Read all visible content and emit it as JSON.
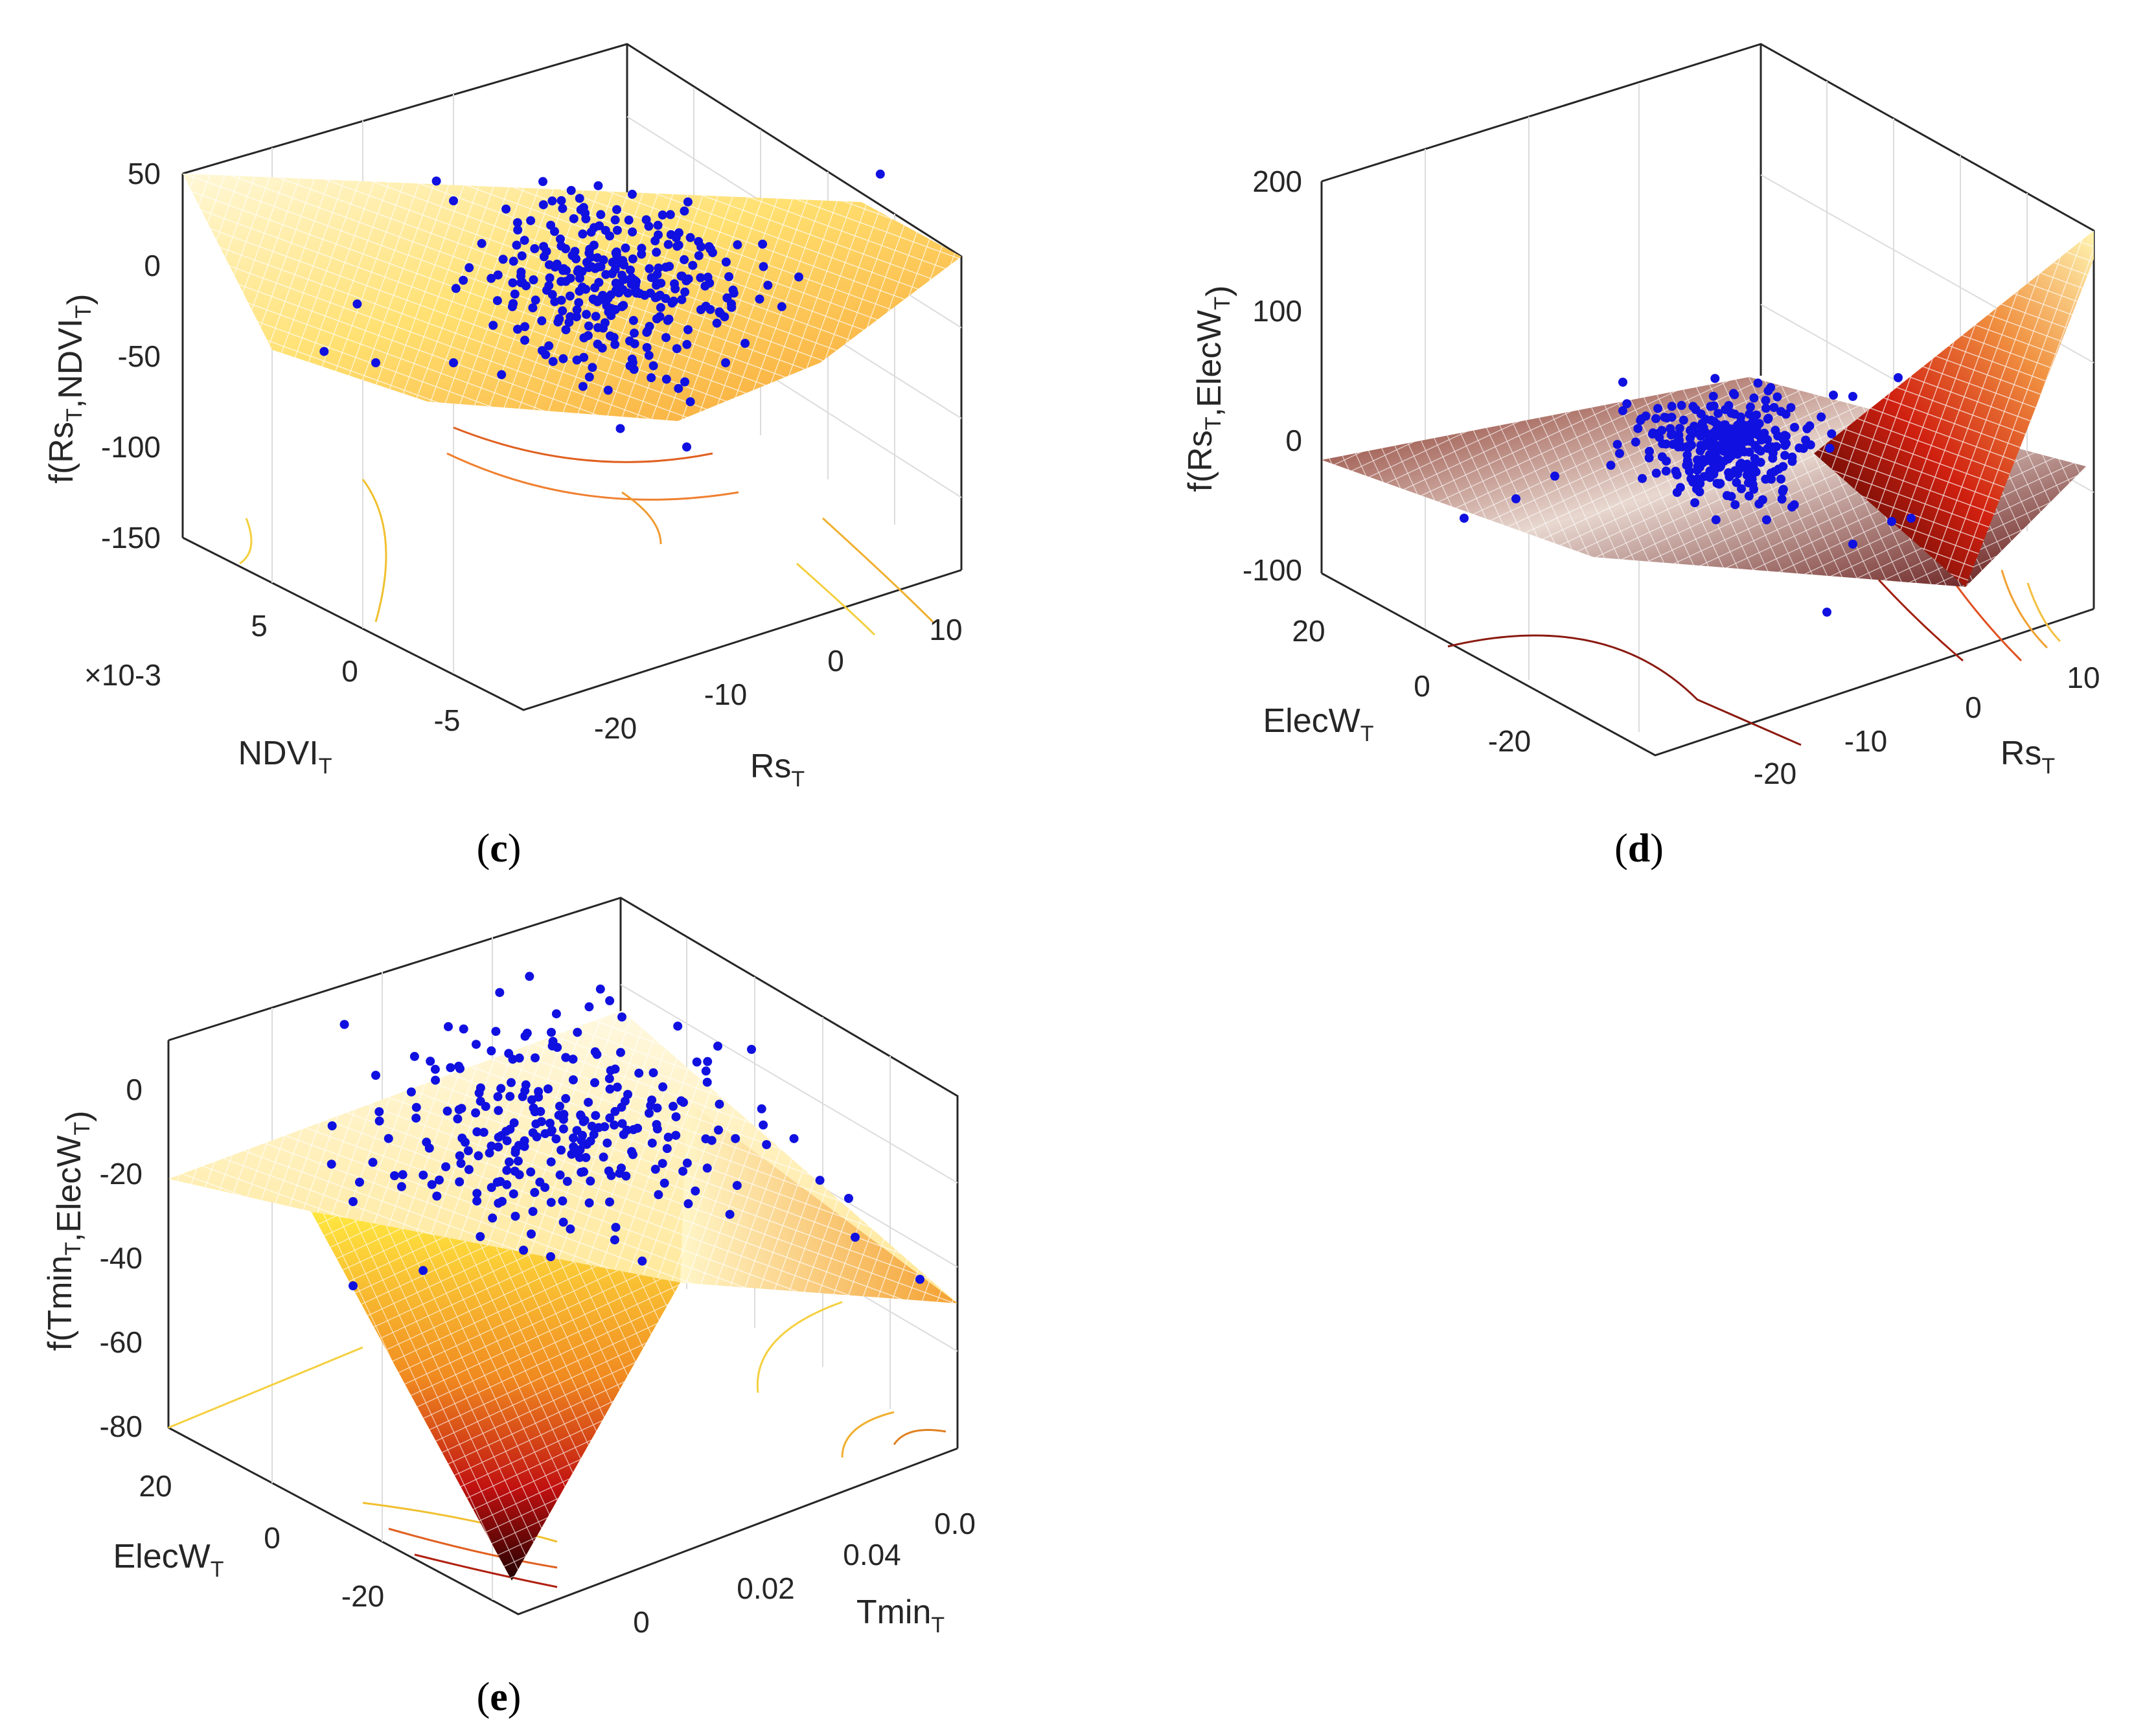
{
  "colors": {
    "marker": "#1010e0",
    "surface_light": "#fff7c8",
    "surface_mid": "#f5a030",
    "surface_dark": "#3a0000",
    "axis": "#262626",
    "grid": "#dcdcdc"
  },
  "chart_data": [
    {
      "panel": "c",
      "caption": "c",
      "type": "surface3d+scatter",
      "z_label": "f(Rs_T,NDVI_T)",
      "x_label": "Rs_T",
      "y_label": "NDVI_T",
      "y_multiplier": "×10-3",
      "z_ticks": [
        "50",
        "0",
        "-50",
        "-100",
        "-150"
      ],
      "z_range": [
        -150,
        50
      ],
      "x_ticks": [
        "-20",
        "-10",
        "0",
        "10"
      ],
      "x_range": [
        -28,
        14
      ],
      "y_ticks": [
        "5",
        "0",
        "-5"
      ],
      "y_range": [
        -7,
        9
      ],
      "colormap": "hot (yellow-orange)",
      "scatter_count": 300,
      "scatter_center_z": -5
    },
    {
      "panel": "d",
      "caption": "d",
      "type": "surface3d+scatter",
      "z_label": "f(Rs_T,ElecW_T)",
      "x_label": "Rs_T",
      "y_label": "ElecW_T",
      "z_ticks": [
        "200",
        "100",
        "0",
        "-100"
      ],
      "z_range": [
        -100,
        200
      ],
      "x_ticks": [
        "-20",
        "-10",
        "0",
        "10"
      ],
      "x_range": [
        -28,
        14
      ],
      "y_ticks": [
        "20",
        "0",
        "-20"
      ],
      "y_range": [
        -32,
        28
      ],
      "colormap": "hot (dark red)",
      "scatter_count": 300,
      "scatter_center_z": 0
    },
    {
      "panel": "e",
      "caption": "e",
      "type": "surface3d+scatter",
      "z_label": "f(Tmin_T,ElecW_T)",
      "x_label": "Tmin_T",
      "y_label": "ElecW_T",
      "z_ticks": [
        "0",
        "-20",
        "-40",
        "-60",
        "-80"
      ],
      "z_range": [
        -80,
        10
      ],
      "x_ticks": [
        "0",
        "0.02",
        "0.04",
        "0.0"
      ],
      "x_range": [
        -0.01,
        0.065
      ],
      "y_ticks": [
        "20",
        "0",
        "-20"
      ],
      "y_range": [
        -32,
        28
      ],
      "colormap": "hot (V-shaped)",
      "scatter_count": 250,
      "scatter_center_z": -10
    }
  ]
}
